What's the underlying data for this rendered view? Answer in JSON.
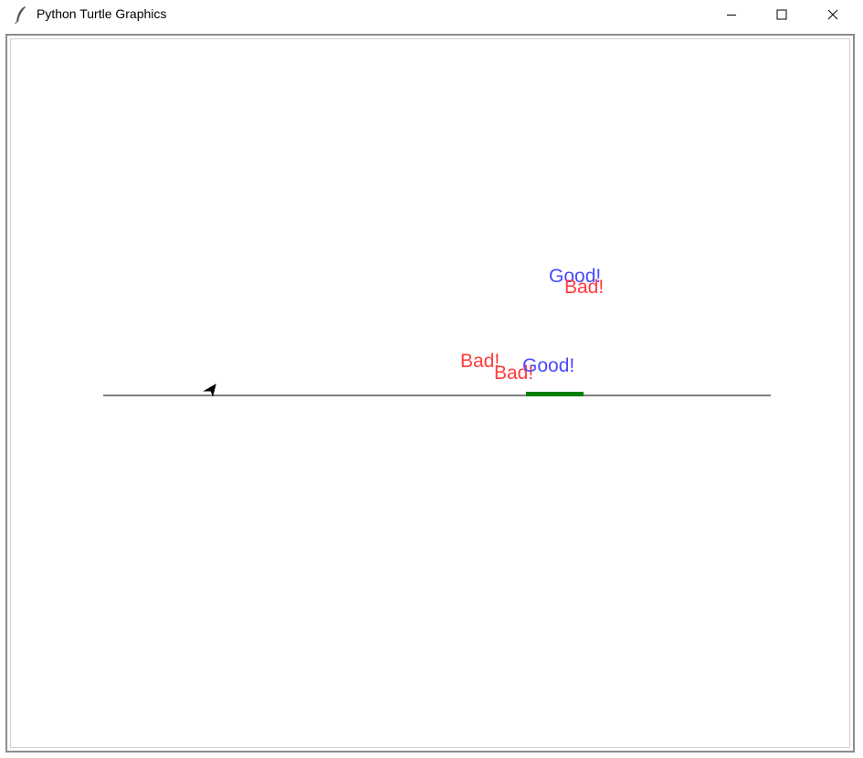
{
  "window": {
    "title": "Python Turtle Graphics",
    "icon": "feather-icon",
    "controls": [
      "minimize-icon",
      "maximize-icon",
      "close-icon"
    ]
  },
  "canvas": {
    "background": "#ffffff",
    "ground_line_color": "#555555",
    "target_color": "#008000",
    "turtle_color": "#000000",
    "labels": [
      {
        "text": "Good!",
        "color": "#4a4aff"
      },
      {
        "text": "Bad!",
        "color": "#ff3b3b"
      },
      {
        "text": "Bad!",
        "color": "#ff3b3b"
      },
      {
        "text": "Bad!",
        "color": "#ff3b3b"
      },
      {
        "text": "Good!",
        "color": "#4a4aff"
      }
    ]
  }
}
